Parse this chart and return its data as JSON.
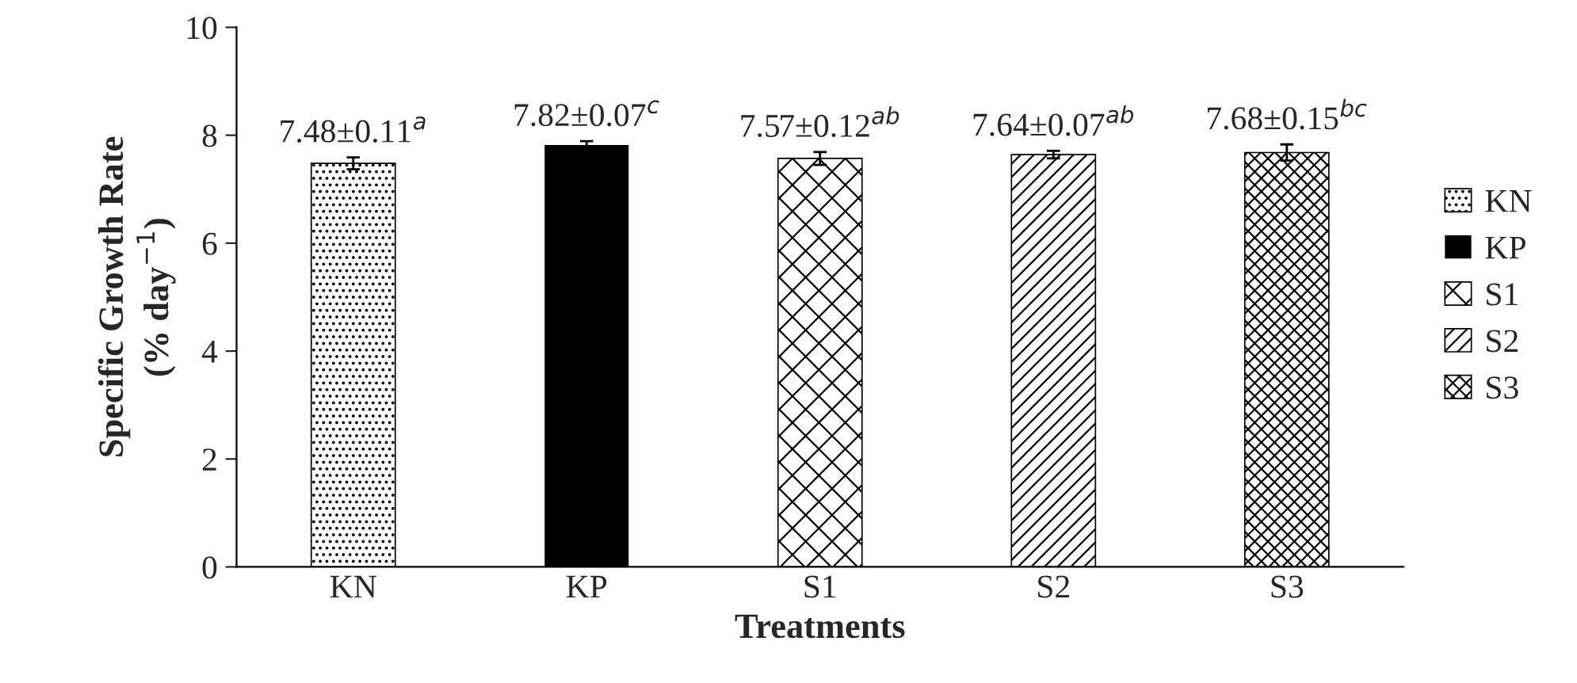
{
  "chart_data": {
    "type": "bar",
    "xlabel": "Treatments",
    "ylabel": "Specific Growth Rate\n(% day$^{−1}$)",
    "categories": [
      "KN",
      "KP",
      "S1",
      "S2",
      "S3"
    ],
    "series": [
      {
        "name": "KN",
        "color": "#000000",
        "values": [
          7.48,
          null,
          null,
          null,
          null
        ],
        "errors": [
          0.11,
          null,
          null,
          null,
          null
        ],
        "value_labels": [
          "7.48±0.11$^{a}$",
          null,
          null,
          null,
          null
        ]
      },
      {
        "name": "KP",
        "color": "#000000",
        "values": [
          null,
          7.82,
          null,
          null,
          null
        ],
        "errors": [
          null,
          0.07,
          null,
          null,
          null
        ],
        "value_labels": [
          null,
          "7.82±0.07$^{c}$",
          null,
          null,
          null
        ]
      },
      {
        "name": "S1",
        "color": "#000000",
        "values": [
          null,
          null,
          7.57,
          null,
          null
        ],
        "errors": [
          null,
          null,
          0.12,
          null,
          null
        ],
        "value_labels": [
          null,
          null,
          "7.57±0.12$^{ab}$",
          null,
          null
        ]
      },
      {
        "name": "S2",
        "color": "#000000",
        "values": [
          null,
          null,
          null,
          7.64,
          null
        ],
        "errors": [
          null,
          null,
          null,
          0.07,
          null
        ],
        "value_labels": [
          null,
          null,
          null,
          "7.64±0.07$^{ab}$",
          null
        ]
      },
      {
        "name": "S3",
        "color": "#000000",
        "values": [
          null,
          null,
          null,
          null,
          7.68
        ],
        "errors": [
          null,
          null,
          null,
          null,
          0.15
        ],
        "value_labels": [
          null,
          null,
          null,
          null,
          "7.68±0.15$^{bc}$"
        ]
      }
    ],
    "ylim": [
      0,
      10
    ],
    "yticks": [
      0,
      2,
      4,
      6,
      8,
      10
    ],
    "grid": false,
    "legend": "right"
  }
}
